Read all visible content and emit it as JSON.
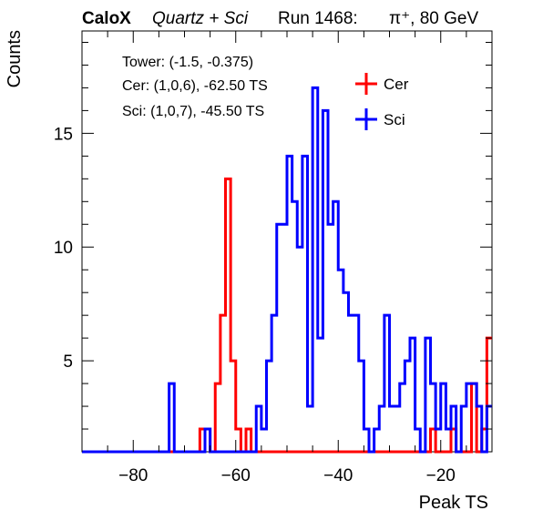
{
  "header": {
    "brand": "CaloX",
    "detector": "Quartz + Sci",
    "run_label": "Run 1468:",
    "particle": "π⁺, 80 GeV"
  },
  "info": {
    "tower": "Tower: (-1.5, -0.375)",
    "cer": "Cer: (1,0,6), -62.50 TS",
    "sci": "Sci: (1,0,7), -45.50 TS"
  },
  "colors": {
    "cer": "#ff0000",
    "sci": "#0000ff"
  },
  "chart_data": {
    "type": "histogram",
    "xlabel": "Peak TS",
    "ylabel": "Counts",
    "xlim": [
      -90,
      -10
    ],
    "ylim": [
      1,
      19.5
    ],
    "x_ticks": [
      -80,
      -60,
      -40,
      -20
    ],
    "y_ticks": [
      5,
      10,
      15
    ],
    "bin_width": 1,
    "legend_position": "top-right",
    "series": [
      {
        "name": "Cer",
        "color": "#ff0000",
        "bins": [
          [
            -90,
            1
          ],
          [
            -67,
            2
          ],
          [
            -65,
            1
          ],
          [
            -64,
            4
          ],
          [
            -63,
            7
          ],
          [
            -62,
            13
          ],
          [
            -61,
            5
          ],
          [
            -60,
            2
          ],
          [
            -59,
            1
          ],
          [
            -58,
            2
          ],
          [
            -57,
            1
          ],
          [
            -23,
            1
          ],
          [
            -22,
            2
          ],
          [
            -21,
            1
          ],
          [
            -18,
            2
          ],
          [
            -17,
            1
          ],
          [
            -14,
            4
          ],
          [
            -13,
            1
          ],
          [
            -12,
            2
          ],
          [
            -11,
            6
          ]
        ]
      },
      {
        "name": "Sci",
        "color": "#0000ff",
        "bins": [
          [
            -90,
            1
          ],
          [
            -73,
            4
          ],
          [
            -72,
            1
          ],
          [
            -66,
            2
          ],
          [
            -65,
            1
          ],
          [
            -56,
            3
          ],
          [
            -55,
            2
          ],
          [
            -54,
            5
          ],
          [
            -53,
            7
          ],
          [
            -52,
            11
          ],
          [
            -51,
            11
          ],
          [
            -50,
            14
          ],
          [
            -49,
            12
          ],
          [
            -48,
            10
          ],
          [
            -47,
            14
          ],
          [
            -46,
            3
          ],
          [
            -45,
            17
          ],
          [
            -44,
            6
          ],
          [
            -43,
            16
          ],
          [
            -42,
            11
          ],
          [
            -41,
            12
          ],
          [
            -40,
            9
          ],
          [
            -39,
            8
          ],
          [
            -38,
            7
          ],
          [
            -36,
            5
          ],
          [
            -35,
            2
          ],
          [
            -34,
            1
          ],
          [
            -33,
            2
          ],
          [
            -32,
            3
          ],
          [
            -31,
            7
          ],
          [
            -30,
            3
          ],
          [
            -29,
            3
          ],
          [
            -28,
            4
          ],
          [
            -27,
            5
          ],
          [
            -26,
            6
          ],
          [
            -25,
            2
          ],
          [
            -24,
            1
          ],
          [
            -23,
            6
          ],
          [
            -22,
            4
          ],
          [
            -21,
            2
          ],
          [
            -20,
            4
          ],
          [
            -19,
            2
          ],
          [
            -18,
            3
          ],
          [
            -17,
            1
          ],
          [
            -16,
            3
          ],
          [
            -15,
            4
          ],
          [
            -14,
            4
          ],
          [
            -13,
            3
          ],
          [
            -12,
            1
          ],
          [
            -11,
            3
          ]
        ]
      }
    ]
  }
}
